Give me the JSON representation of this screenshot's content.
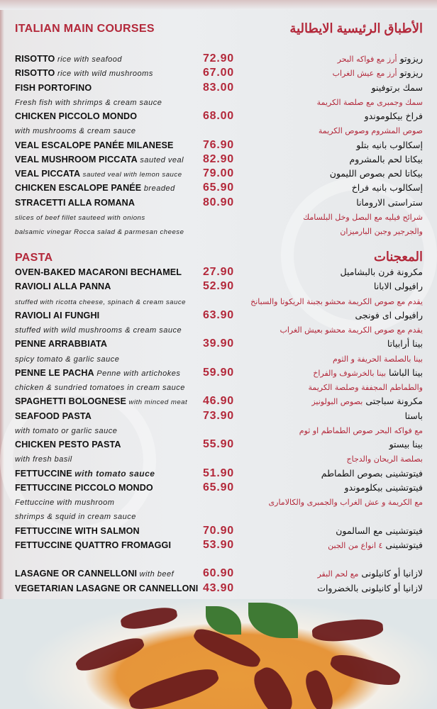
{
  "sections": [
    {
      "title": "ITALIAN MAIN COURSES",
      "title_ar": "الأطباق الرئيسية الايطالية",
      "rows": [
        {
          "name": "RISOTTO",
          "desc": "rice with seafood",
          "price": "72.90",
          "ar": "ريزوتو",
          "ar_red": "أرز مع فواكه البحر"
        },
        {
          "name": "RISOTTO",
          "desc": "rice with wild mushrooms",
          "price": "67.00",
          "ar": "ريزوتو",
          "ar_red": "أرز مع عيش الغراب"
        },
        {
          "name": "FISH PORTOFINO",
          "price": "83.00",
          "ar": "سمك برتوفينو"
        },
        {
          "desc": "Fresh fish with shrimps & cream sauce",
          "ar_red": "سمك وجمبرى مع صلصة الكريمة"
        },
        {
          "name": "CHICKEN PICCOLO MONDO",
          "price": "68.00",
          "ar": "فراخ بيكلوموندو"
        },
        {
          "desc": "with mushrooms & cream sauce",
          "ar_red": "صوص المشروم وصوص الكريمة"
        },
        {
          "name": "VEAL ESCALOPE PANÉE MILANESE",
          "price": "76.90",
          "ar": "إسكالوب بانيه بتلو"
        },
        {
          "name": "VEAL MUSHROOM PICCATA",
          "desc": "sauted veal",
          "price": "82.90",
          "ar": "بيكاتا لحم بالمشروم"
        },
        {
          "name": "VEAL PICCATA",
          "desc": "sauted veal with lemon sauce",
          "desc_small": true,
          "price": "79.00",
          "ar": "بيكاتا لحم بصوص الليمون"
        },
        {
          "name": "CHICKEN ESCALOPE PANÉE",
          "desc": "breaded",
          "price": "65.90",
          "ar": "إسكالوب بانيه فراخ"
        },
        {
          "name": "STRACETTI ALLA ROMANA",
          "price": "80.90",
          "ar": "ستراستى الارومانا"
        },
        {
          "desc": "slices of beef fillet sauteed with onions",
          "desc_small": true,
          "ar_red": "شرائح فيليه مع البصل وخل البلسامك"
        },
        {
          "desc": "balsamic vinegar Rocca salad & parmesan cheese",
          "desc_small": true,
          "ar_red": "والجرجير وجبن البارميزان"
        }
      ]
    },
    {
      "title": "PASTA",
      "title_ar": "المعجنات",
      "rows": [
        {
          "name": "OVEN-BAKED MACARONI BECHAMEL",
          "price": "27.90",
          "ar": "مكرونة فرن بالبشاميل"
        },
        {
          "name": "RAVIOLI ALLA PANNA",
          "price": "52.90",
          "ar": "رافيولى الابانا"
        },
        {
          "desc": "stuffed with ricotta cheese, spinach & cream sauce",
          "desc_small": true,
          "ar_red": "يقدم مع صوص الكريمة محشو بجبنة الريكوتا والسبانخ"
        },
        {
          "name": "RAVIOLI AI FUNGHI",
          "price": "63.90",
          "ar": "رافيولى اى فونجى"
        },
        {
          "desc": "stuffed with wild mushrooms & cream sauce",
          "ar_red": "يقدم مع صوص الكريمة محشو بعيش الغراب"
        },
        {
          "name": "PENNE ARRABBIATA",
          "price": "39.90",
          "ar": "بينا أرابياتا"
        },
        {
          "desc": "spicy tomato & garlic sauce",
          "ar_red": "بينا بالصلصة الحريفة و الثوم"
        },
        {
          "name": "PENNE LE PACHA",
          "desc": "Penne with artichokes",
          "price": "59.90",
          "ar": "بينا الباشا",
          "ar_red": "بينا بالخرشوف والفراخ"
        },
        {
          "desc": "chicken & sundried tomatoes in cream sauce",
          "ar_red": "والطماطم المجففة وصلصة الكريمة"
        },
        {
          "name": "SPAGHETTI BOLOGNESE",
          "desc": "with minced meat",
          "desc_small": true,
          "price": "46.90",
          "ar": "مكرونة سباجتى",
          "ar_red": "بصوص البولونيز"
        },
        {
          "name": "SEAFOOD PASTA",
          "price": "73.90",
          "ar": "باستا"
        },
        {
          "desc": "with tomato or garlic sauce",
          "ar_red": "مع فواكه البحر  صوص الطماطم او ثوم"
        },
        {
          "name": "CHICKEN PESTO PASTA",
          "price": "55.90",
          "ar": "بينا بيستو"
        },
        {
          "desc": "with fresh basil",
          "ar_red": "بصلصة الريحان والدجاج"
        },
        {
          "name": "FETTUCCINE",
          "desc": "with tomato sauce",
          "desc_bold": true,
          "price": "51.90",
          "ar": "فيتوتشينى بصوص الطماطم"
        },
        {
          "name": "FETTUCCINE PICCOLO MONDO",
          "price": "65.90",
          "ar": "فيتوتشينى بيكلوموندو"
        },
        {
          "desc": "Fettuccine with mushroom",
          "ar_red": "مع الكريمة و عش الغراب والجمبرى والكالامارى"
        },
        {
          "desc": " shrimps & squid in cream sauce"
        },
        {
          "name": "FETTUCCINE WITH SALMON",
          "price": "70.90",
          "ar": "فيتوتشينى مع السالمون"
        },
        {
          "name": "FETTUCCINE QUATTRO FROMAGGI",
          "price": "53.90",
          "ar": "فيتوتشينى",
          "ar_red": "٤ انواع من الجبن"
        },
        {},
        {
          "name": "LASAGNE OR CANNELLONI",
          "desc": "with beef",
          "price": "60.90",
          "ar": "لازانيا  أو كانيلونى",
          "ar_red": "مع لحم البقر"
        },
        {
          "name": "VEGETARIAN LASAGNE OR CANNELLONI",
          "price": "43.90",
          "ar": "لازانيا أو كانيلونى بالخضروات"
        }
      ]
    }
  ],
  "colors": {
    "accent": "#b3283a",
    "text": "#111111",
    "background": "#eceef0"
  }
}
